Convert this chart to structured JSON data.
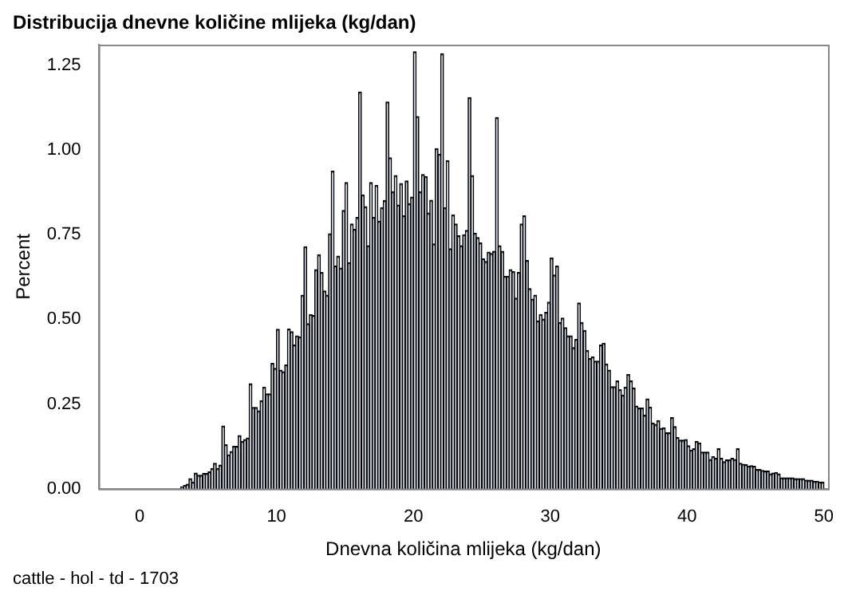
{
  "chart_data": {
    "type": "histogram",
    "title": "Distribucija dnevne količine mlijeka (kg/dan)",
    "xlabel": "Dnevna količina mlijeka (kg/dan)",
    "ylabel": "Percent",
    "annotations": [
      "cattle - hol - td - 1703"
    ],
    "color": "#cbd5e3",
    "bins": [
      3,
      3.2,
      3.4,
      3.6,
      3.8,
      4,
      4.2,
      4.4,
      4.6,
      4.8,
      5,
      5.2,
      5.4,
      5.6,
      5.8,
      6,
      6.2,
      6.4,
      6.6,
      6.8,
      7,
      7.2,
      7.4,
      7.6,
      7.8,
      8,
      8.2,
      8.4,
      8.6,
      8.8,
      9,
      9.2,
      9.4,
      9.6,
      9.8,
      10,
      10.2,
      10.4,
      10.6,
      10.8,
      11,
      11.2,
      11.4,
      11.6,
      11.8,
      12,
      12.2,
      12.4,
      12.6,
      12.8,
      13,
      13.2,
      13.4,
      13.6,
      13.8,
      14,
      14.2,
      14.4,
      14.6,
      14.8,
      15,
      15.2,
      15.4,
      15.6,
      15.8,
      16,
      16.2,
      16.4,
      16.6,
      16.8,
      17,
      17.2,
      17.4,
      17.6,
      17.8,
      18,
      18.2,
      18.4,
      18.6,
      18.8,
      19,
      19.2,
      19.4,
      19.6,
      19.8,
      20,
      20.2,
      20.4,
      20.6,
      20.8,
      21,
      21.2,
      21.4,
      21.6,
      21.8,
      22,
      22.2,
      22.4,
      22.6,
      22.8,
      23,
      23.2,
      23.4,
      23.6,
      23.8,
      24,
      24.2,
      24.4,
      24.6,
      24.8,
      25,
      25.2,
      25.4,
      25.6,
      25.8,
      26,
      26.2,
      26.4,
      26.6,
      26.8,
      27,
      27.2,
      27.4,
      27.6,
      27.8,
      28,
      28.2,
      28.4,
      28.6,
      28.8,
      29,
      29.2,
      29.4,
      29.6,
      29.8,
      30,
      30.2,
      30.4,
      30.6,
      30.8,
      31,
      31.2,
      31.4,
      31.6,
      31.8,
      32,
      32.2,
      32.4,
      32.6,
      32.8,
      33,
      33.2,
      33.4,
      33.6,
      33.8,
      34,
      34.2,
      34.4,
      34.6,
      34.8,
      35,
      35.2,
      35.4,
      35.6,
      35.8,
      36,
      36.2,
      36.4,
      36.6,
      36.8,
      37,
      37.2,
      37.4,
      37.6,
      37.8,
      38,
      38.2,
      38.4,
      38.6,
      38.8,
      39,
      39.2,
      39.4,
      39.6,
      39.8,
      40,
      40.2,
      40.4,
      40.6,
      40.8,
      41,
      41.2,
      41.4,
      41.6,
      41.8,
      42,
      42.2,
      42.4,
      42.6,
      42.8,
      43,
      43.2,
      43.4,
      43.6,
      43.8,
      44,
      44.2,
      44.4,
      44.6,
      44.8,
      45,
      45.2,
      45.4,
      45.6,
      45.8,
      46,
      46.2,
      46.4,
      46.6,
      46.8,
      47,
      47.2,
      47.4,
      47.6,
      47.8,
      48,
      48.2,
      48.4,
      48.6,
      48.8,
      49,
      49.2,
      49.4,
      49.6,
      49.8,
      50
    ],
    "values": [
      0.005,
      0.01,
      0.013,
      0.03,
      0.02,
      0.046,
      0.04,
      0.04,
      0.045,
      0.045,
      0.05,
      0.06,
      0.075,
      0.06,
      0.07,
      0.185,
      0.13,
      0.1,
      0.11,
      0.125,
      0.125,
      0.157,
      0.14,
      0.145,
      0.15,
      0.31,
      0.24,
      0.24,
      0.23,
      0.26,
      0.3,
      0.28,
      0.28,
      0.37,
      0.355,
      0.47,
      0.35,
      0.345,
      0.365,
      0.471,
      0.463,
      0.424,
      0.451,
      0.448,
      0.571,
      0.714,
      0.487,
      0.514,
      0.511,
      0.646,
      0.69,
      0.638,
      0.583,
      0.571,
      0.752,
      0.937,
      0.657,
      0.686,
      0.651,
      0.821,
      0.903,
      0.667,
      0.781,
      0.765,
      0.8,
      1.17,
      0.867,
      0.832,
      0.717,
      0.903,
      0.8,
      0.895,
      0.789,
      0.829,
      0.85,
      1.141,
      0.976,
      0.876,
      0.924,
      0.837,
      0.9,
      0.805,
      0.908,
      0.841,
      0.86,
      1.289,
      1.098,
      0.876,
      0.927,
      0.921,
      0.813,
      0.851,
      0.722,
      1.003,
      0.987,
      1.283,
      0.829,
      0.968,
      0.708,
      0.808,
      0.781,
      0.746,
      0.717,
      0.749,
      0.762,
      1.154,
      0.924,
      0.754,
      0.741,
      0.725,
      0.678,
      0.67,
      0.698,
      0.694,
      0.7,
      1.095,
      0.717,
      0.7,
      0.627,
      0.627,
      0.646,
      0.64,
      0.562,
      0.638,
      0.781,
      0.805,
      0.673,
      0.59,
      0.559,
      0.571,
      0.495,
      0.514,
      0.5,
      0.52,
      0.55,
      0.681,
      0.63,
      0.657,
      0.49,
      0.503,
      0.475,
      0.451,
      0.451,
      0.416,
      0.44,
      0.548,
      0.49,
      0.467,
      0.408,
      0.384,
      0.389,
      0.376,
      0.376,
      0.424,
      0.429,
      0.368,
      0.35,
      0.301,
      0.301,
      0.318,
      0.292,
      0.276,
      0.3,
      0.337,
      0.318,
      0.297,
      0.244,
      0.238,
      0.238,
      0.217,
      0.265,
      0.241,
      0.194,
      0.19,
      0.201,
      0.178,
      0.18,
      0.165,
      0.165,
      0.21,
      0.183,
      0.151,
      0.143,
      0.143,
      0.145,
      0.127,
      0.114,
      0.118,
      0.14,
      0.135,
      0.108,
      0.108,
      0.108,
      0.086,
      0.095,
      0.09,
      0.118,
      0.09,
      0.08,
      0.085,
      0.085,
      0.09,
      0.086,
      0.118,
      0.075,
      0.072,
      0.071,
      0.067,
      0.068,
      0.066,
      0.057,
      0.057,
      0.054,
      0.052,
      0.052,
      0.044,
      0.046,
      0.048,
      0.044,
      0.032,
      0.032,
      0.032,
      0.032,
      0.032,
      0.03,
      0.03,
      0.03,
      0.03,
      0.025,
      0.025,
      0.025,
      0.022,
      0.022,
      0.02,
      0.02
    ],
    "xlim": [
      -3,
      50.3
    ],
    "xticks": [
      0,
      10,
      20,
      30,
      40,
      50
    ],
    "ylim": [
      0,
      1.31
    ],
    "yticks": [
      {
        "value": 0,
        "label": "0.00"
      },
      {
        "value": 0.25,
        "label": "0.25"
      },
      {
        "value": 0.5,
        "label": "0.50"
      },
      {
        "value": 0.75,
        "label": "0.75"
      },
      {
        "value": 1,
        "label": "1.00"
      },
      {
        "value": 1.25,
        "label": "1.25"
      }
    ],
    "grid": false,
    "legend": false
  }
}
